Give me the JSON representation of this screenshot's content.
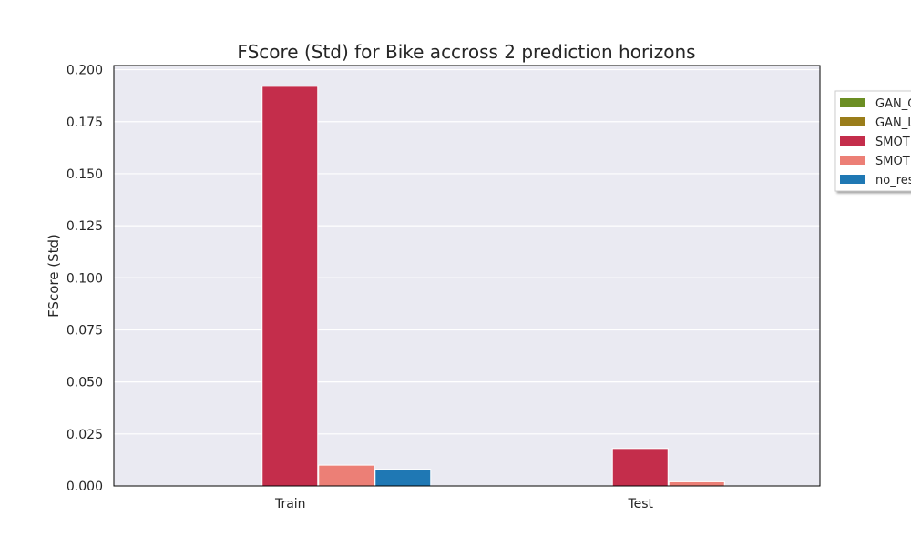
{
  "chart_data": {
    "type": "bar",
    "title": "FScore (Std) for Bike accross 2 prediction horizons",
    "xlabel": "",
    "ylabel": "FScore (Std)",
    "categories": [
      "Train",
      "Test"
    ],
    "ylim": [
      0,
      0.202
    ],
    "yticks": [
      0.0,
      0.025,
      0.05,
      0.075,
      0.1,
      0.125,
      0.15,
      0.175,
      0.2
    ],
    "ytick_labels": [
      "0.000",
      "0.025",
      "0.050",
      "0.075",
      "0.100",
      "0.125",
      "0.150",
      "0.175",
      "0.200"
    ],
    "grid": true,
    "legend_position": "right, outside plot area (clipped)",
    "series": [
      {
        "name": "GAN_C",
        "color": "#6b8e23",
        "values": [
          0,
          0
        ]
      },
      {
        "name": "GAN_L",
        "color": "#9a7d1a",
        "values": [
          0,
          0
        ]
      },
      {
        "name": "SMOT",
        "color": "#c42d4b",
        "values": [
          0.192,
          0.018
        ]
      },
      {
        "name": "SMOT",
        "color": "#ec7f76",
        "values": [
          0.01,
          0.002
        ]
      },
      {
        "name": "no_res",
        "color": "#1f78b4",
        "values": [
          0.008,
          0
        ]
      }
    ]
  }
}
